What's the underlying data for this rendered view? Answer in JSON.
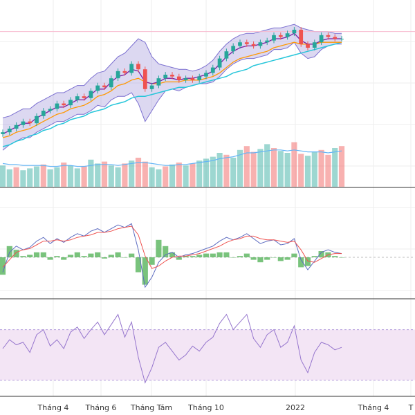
{
  "chart_data": {
    "type": "line",
    "panes": [
      "price",
      "volume",
      "macd",
      "rsi"
    ],
    "x_axis": {
      "tick_labels": [
        "Tháng 4",
        "Tháng 6",
        "Tháng Tám",
        "Tháng 10",
        "2022",
        "Tháng 4",
        "T"
      ]
    },
    "price": {
      "series": [
        {
          "name": "",
          "kind": "candlestick-close",
          "values": [
            108,
            110,
            112,
            114,
            113,
            117,
            120,
            121,
            124,
            123,
            126,
            128,
            127,
            131,
            134,
            133,
            138,
            142,
            141,
            146,
            143,
            132,
            134,
            138,
            140,
            139,
            137,
            138,
            137,
            139,
            141,
            144,
            149,
            153,
            156,
            158,
            157,
            156,
            158,
            159,
            162,
            161,
            163,
            165,
            157,
            155,
            158,
            162,
            161,
            160,
            160
          ]
        },
        {
          "name": "",
          "kind": "ema-short",
          "values": [
            107,
            109,
            111,
            113,
            113,
            116,
            118,
            120,
            122,
            122,
            124,
            126,
            126,
            129,
            132,
            132,
            136,
            139,
            140,
            143,
            142,
            136,
            135,
            136,
            138,
            138,
            137,
            138,
            138,
            139,
            140,
            142,
            146,
            150,
            153,
            155,
            156,
            156,
            157,
            158,
            160,
            160,
            161,
            163,
            159,
            157,
            157,
            159,
            160,
            160,
            160
          ]
        },
        {
          "name": "",
          "kind": "ema-medium",
          "values": [
            105,
            106,
            108,
            109,
            110,
            112,
            114,
            116,
            118,
            119,
            121,
            122,
            123,
            125,
            128,
            129,
            131,
            134,
            135,
            137,
            138,
            136,
            135,
            135,
            136,
            136,
            136,
            137,
            137,
            137,
            138,
            139,
            141,
            144,
            147,
            149,
            150,
            151,
            152,
            153,
            155,
            156,
            157,
            158,
            157,
            157,
            157,
            158,
            158,
            158,
            158
          ]
        },
        {
          "name": "",
          "kind": "ema-long",
          "values": [
            100,
            101,
            103,
            104,
            106,
            107,
            109,
            110,
            112,
            113,
            115,
            116,
            117,
            119,
            120,
            121,
            123,
            124,
            125,
            127,
            128,
            128,
            129,
            130,
            131,
            132,
            133,
            133,
            134,
            135,
            136,
            137,
            138,
            139,
            141,
            142,
            143,
            145,
            146,
            147,
            148,
            149,
            150,
            151,
            152,
            153,
            154,
            155,
            156,
            157,
            158
          ]
        },
        {
          "name": "",
          "kind": "bollinger-upper",
          "values": [
            116,
            117,
            119,
            121,
            121,
            124,
            126,
            128,
            130,
            130,
            132,
            134,
            134,
            138,
            141,
            142,
            146,
            150,
            152,
            156,
            160,
            158,
            150,
            146,
            145,
            144,
            143,
            143,
            142,
            143,
            145,
            148,
            153,
            157,
            160,
            162,
            163,
            163,
            164,
            165,
            166,
            166,
            167,
            168,
            166,
            165,
            164,
            164,
            164,
            163,
            163
          ]
        },
        {
          "name": "",
          "kind": "bollinger-lower",
          "values": [
            98,
            101,
            103,
            105,
            105,
            108,
            110,
            112,
            114,
            114,
            116,
            118,
            118,
            120,
            123,
            122,
            126,
            128,
            128,
            130,
            124,
            114,
            120,
            126,
            131,
            132,
            131,
            133,
            134,
            135,
            135,
            136,
            139,
            143,
            146,
            148,
            149,
            149,
            150,
            151,
            154,
            154,
            155,
            158,
            152,
            149,
            150,
            154,
            156,
            157,
            157
          ]
        }
      ],
      "reference_line": 164
    },
    "volume": {
      "values": [
        22,
        18,
        20,
        17,
        19,
        21,
        23,
        18,
        20,
        25,
        22,
        19,
        21,
        28,
        24,
        26,
        22,
        20,
        24,
        27,
        30,
        26,
        20,
        18,
        21,
        23,
        25,
        22,
        24,
        27,
        29,
        31,
        35,
        33,
        30,
        38,
        42,
        36,
        39,
        44,
        40,
        37,
        35,
        46,
        34,
        32,
        36,
        38,
        33,
        40,
        42
      ],
      "direction": [
        "up",
        "up",
        "down",
        "up",
        "up",
        "up",
        "down",
        "up",
        "up",
        "down",
        "up",
        "up",
        "down",
        "up",
        "up",
        "down",
        "up",
        "up",
        "down",
        "up",
        "down",
        "down",
        "up",
        "up",
        "down",
        "up",
        "down",
        "up",
        "down",
        "up",
        "up",
        "up",
        "up",
        "down",
        "up",
        "up",
        "down",
        "down",
        "up",
        "up",
        "down",
        "up",
        "up",
        "down",
        "down",
        "up",
        "up",
        "down",
        "down",
        "up",
        "down"
      ],
      "ma_values": [
        24,
        23,
        23,
        22,
        22,
        22,
        22,
        21,
        21,
        22,
        22,
        21,
        21,
        22,
        23,
        23,
        23,
        22,
        23,
        24,
        25,
        25,
        24,
        23,
        22,
        22,
        23,
        23,
        24,
        25,
        26,
        27,
        29,
        30,
        31,
        33,
        35,
        35,
        36,
        37,
        38,
        38,
        37,
        38,
        37,
        36,
        36,
        36,
        35,
        36,
        37
      ]
    },
    "macd": {
      "macd_line": [
        -1.2,
        0.4,
        0.9,
        0.6,
        0.8,
        1.3,
        1.6,
        1.1,
        1.5,
        1.2,
        1.6,
        1.9,
        1.7,
        2.1,
        2.3,
        2.0,
        2.3,
        2.6,
        2.4,
        2.7,
        0.6,
        -2.4,
        -1.6,
        -0.4,
        0.2,
        0.4,
        0.0,
        0.2,
        0.3,
        0.5,
        0.7,
        0.9,
        1.3,
        1.6,
        1.4,
        1.6,
        1.9,
        1.5,
        1.1,
        1.3,
        1.4,
        1.0,
        1.1,
        1.5,
        -0.2,
        -1.0,
        -0.3,
        0.4,
        0.6,
        0.4,
        0.3
      ],
      "signal_line": [
        -0.8,
        -0.2,
        0.4,
        0.6,
        0.7,
        1.0,
        1.3,
        1.3,
        1.4,
        1.3,
        1.4,
        1.6,
        1.7,
        1.8,
        2.0,
        2.0,
        2.1,
        2.3,
        2.4,
        2.5,
        1.8,
        0.1,
        -0.9,
        -0.7,
        -0.3,
        0.0,
        0.1,
        0.1,
        0.2,
        0.3,
        0.5,
        0.7,
        0.9,
        1.2,
        1.4,
        1.5,
        1.7,
        1.7,
        1.5,
        1.4,
        1.4,
        1.3,
        1.2,
        1.3,
        0.6,
        -0.3,
        -0.4,
        -0.1,
        0.2,
        0.3,
        0.3
      ],
      "histogram": [
        -1.4,
        0.9,
        0.6,
        0.1,
        0.2,
        0.4,
        0.4,
        -0.2,
        0.1,
        -0.2,
        0.2,
        0.4,
        0.1,
        0.3,
        0.4,
        -0.1,
        0.2,
        0.4,
        0.0,
        0.3,
        -1.2,
        -2.2,
        -0.6,
        1.4,
        0.9,
        0.4,
        -0.2,
        0.1,
        0.1,
        0.2,
        0.3,
        0.3,
        0.4,
        0.4,
        0.0,
        0.1,
        0.3,
        -0.2,
        -0.4,
        -0.2,
        0.0,
        -0.3,
        -0.2,
        0.3,
        -0.8,
        -0.7,
        0.1,
        0.5,
        0.4,
        0.1,
        0.0
      ],
      "zero_line": 0
    },
    "rsi": {
      "values": [
        55,
        62,
        58,
        60,
        52,
        66,
        70,
        57,
        62,
        55,
        68,
        72,
        63,
        70,
        76,
        66,
        74,
        82,
        64,
        76,
        48,
        28,
        40,
        56,
        60,
        53,
        46,
        50,
        57,
        53,
        60,
        64,
        75,
        82,
        70,
        76,
        82,
        63,
        56,
        66,
        70,
        56,
        60,
        73,
        46,
        36,
        52,
        60,
        58,
        54,
        56
      ],
      "band_upper": 70,
      "band_lower": 30,
      "ylim": [
        20,
        90
      ]
    },
    "colors": {
      "up": "#26a69a",
      "down": "#ef5350",
      "band_fill": "#9c8fd6",
      "band_line": "#7b6fd0",
      "ema_short": "#7b1fa2",
      "ema_medium": "#ff9800",
      "ema_long": "#26c6da",
      "reference": "#f8bbd0",
      "macd_line": "#5c6bc0",
      "signal_line": "#ef5350",
      "hist_pos": "#4caf50",
      "hist_neg": "#4caf50",
      "rsi_line": "#9575cd",
      "rsi_band": "#f3e5f5",
      "grid": "#eeeeee",
      "separator": "#333333"
    }
  }
}
